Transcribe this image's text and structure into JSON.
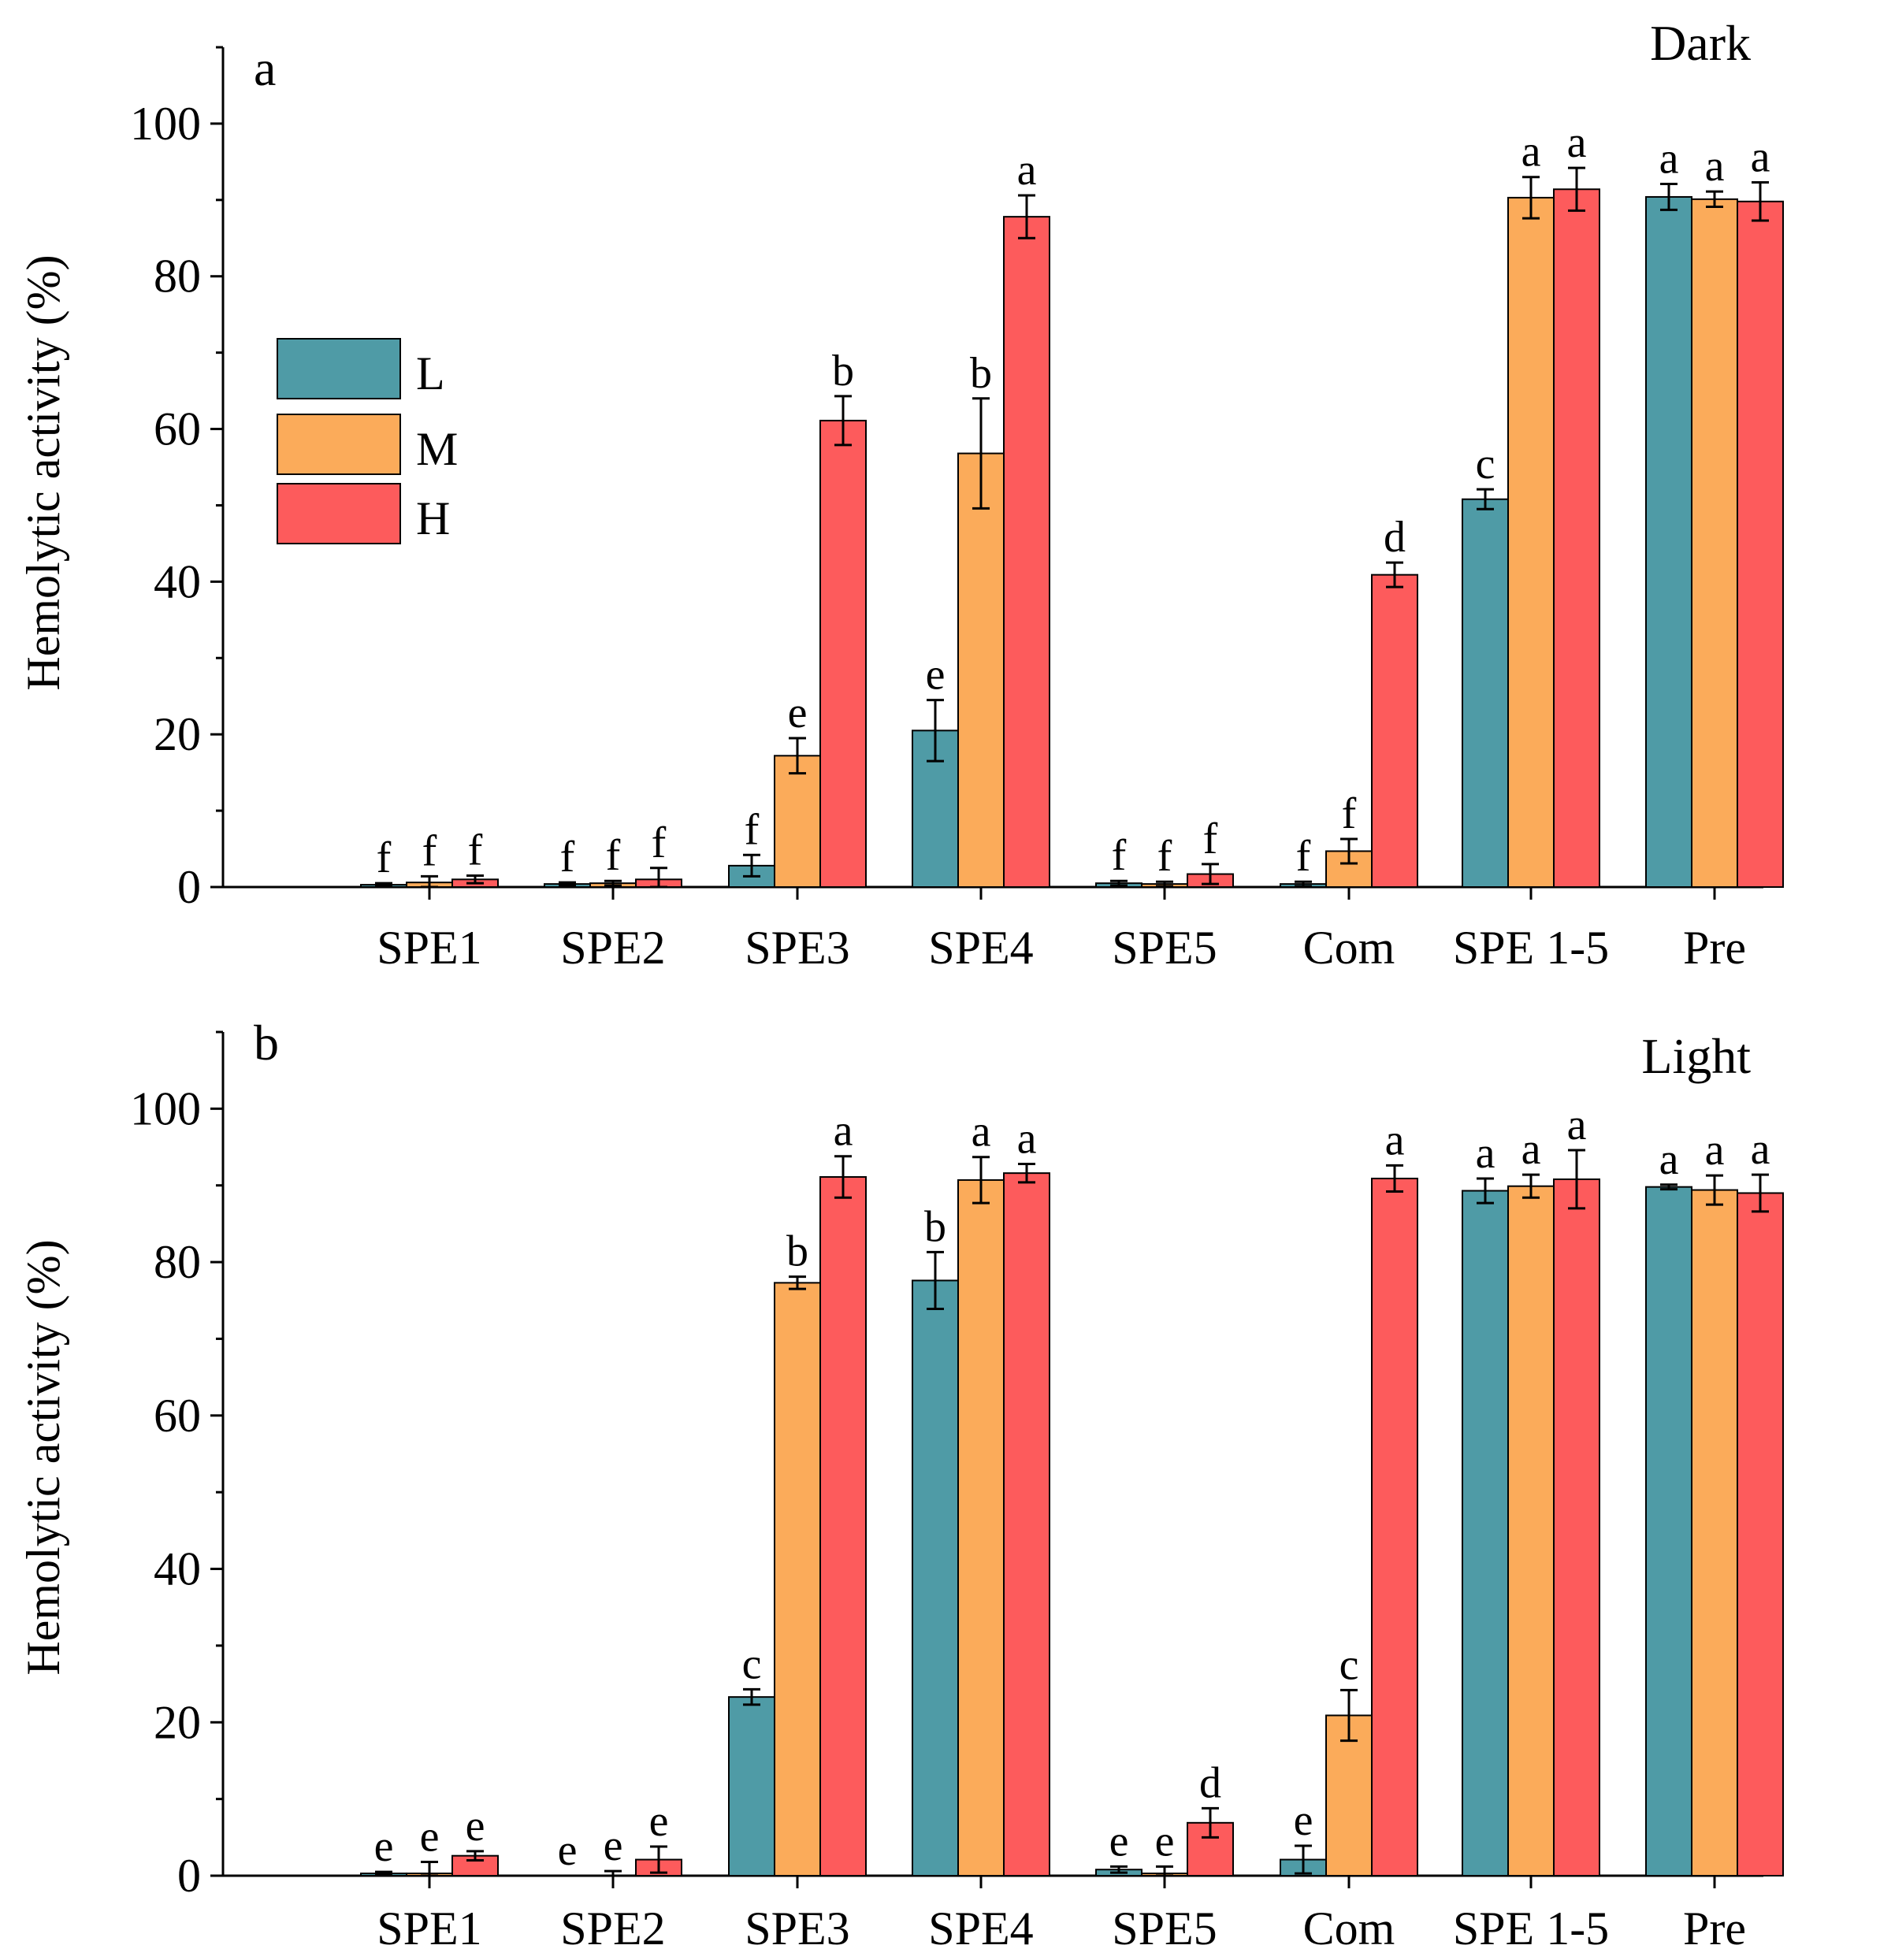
{
  "chart_data": [
    {
      "type": "bar",
      "panel": "a",
      "title": "Dark",
      "ylabel": "Hemolytic activity (%)",
      "xlabel": "",
      "ylim": [
        0,
        110
      ],
      "yticks": [
        0,
        20,
        40,
        60,
        80,
        100
      ],
      "categories": [
        "SPE1",
        "SPE2",
        "SPE3",
        "SPE4",
        "SPE5",
        "Com",
        "SPE 1-5",
        "Pre"
      ],
      "series": [
        {
          "name": "L",
          "color": "#4f9ba6",
          "values": [
            0.3,
            0.4,
            2.8,
            20.5,
            0.5,
            0.4,
            50.8,
            90.4
          ],
          "errors": [
            0.2,
            0.2,
            1.4,
            4.0,
            0.3,
            0.3,
            1.3,
            1.7
          ],
          "letters": [
            "f",
            "f",
            "f",
            "e",
            "f",
            "f",
            "c",
            "a"
          ]
        },
        {
          "name": "M",
          "color": "#fbab5a",
          "values": [
            0.6,
            0.5,
            17.2,
            56.8,
            0.4,
            4.7,
            90.3,
            90.1
          ],
          "errors": [
            0.8,
            0.3,
            2.3,
            7.2,
            0.3,
            1.6,
            2.7,
            1.0
          ],
          "letters": [
            "f",
            "f",
            "e",
            "b",
            "f",
            "f",
            "a",
            "a"
          ]
        },
        {
          "name": "H",
          "color": "#fd5b5c",
          "values": [
            1.0,
            1.0,
            61.1,
            87.8,
            1.7,
            40.9,
            91.4,
            89.8
          ],
          "errors": [
            0.5,
            1.5,
            3.2,
            2.8,
            1.3,
            1.6,
            2.8,
            2.5
          ],
          "letters": [
            "f",
            "f",
            "b",
            "a",
            "f",
            "d",
            "a",
            "a"
          ]
        }
      ]
    },
    {
      "type": "bar",
      "panel": "b",
      "title": "Light",
      "ylabel": "Hemolytic activity (%)",
      "xlabel": "",
      "ylim": [
        0,
        110
      ],
      "yticks": [
        0,
        20,
        40,
        60,
        80,
        100
      ],
      "categories": [
        "SPE1",
        "SPE2",
        "SPE3",
        "SPE4",
        "SPE5",
        "Com",
        "SPE 1-5",
        "Pre"
      ],
      "series": [
        {
          "name": "L",
          "color": "#4f9ba6",
          "values": [
            0.3,
            0.0,
            23.3,
            77.6,
            0.8,
            2.1,
            89.3,
            89.8
          ],
          "errors": [
            0.2,
            0.0,
            1.0,
            3.7,
            0.4,
            1.8,
            1.6,
            0.3
          ],
          "letters": [
            "e",
            "e",
            "c",
            "b",
            "e",
            "e",
            "a",
            "a"
          ]
        },
        {
          "name": "M",
          "color": "#fbab5a",
          "values": [
            0.3,
            0.0,
            77.3,
            90.7,
            0.3,
            20.9,
            89.9,
            89.4
          ],
          "errors": [
            1.5,
            0.6,
            0.8,
            3.0,
            0.9,
            3.3,
            1.5,
            1.9
          ],
          "letters": [
            "e",
            "e",
            "b",
            "a",
            "e",
            "c",
            "a",
            "a"
          ]
        },
        {
          "name": "H",
          "color": "#fd5b5c",
          "values": [
            2.6,
            2.1,
            91.1,
            91.6,
            6.9,
            90.9,
            90.8,
            89.0
          ],
          "errors": [
            0.6,
            1.7,
            2.7,
            1.2,
            1.9,
            1.7,
            3.8,
            2.4
          ],
          "letters": [
            "e",
            "e",
            "a",
            "a",
            "d",
            "a",
            "a",
            "a"
          ]
        }
      ]
    }
  ]
}
